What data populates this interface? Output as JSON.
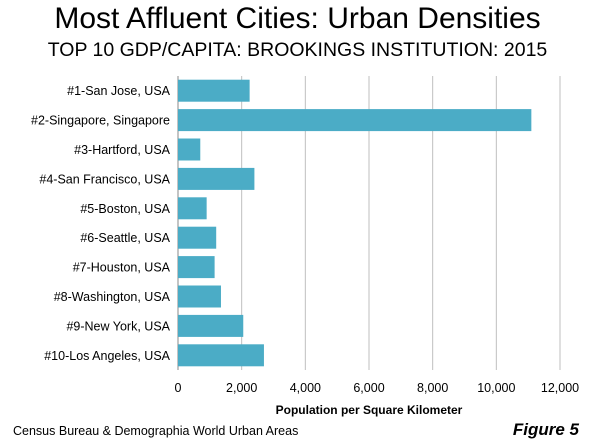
{
  "header": {
    "title": "Most Affluent Cities: Urban Densities",
    "subtitle": "TOP 10 GDP/CAPITA: BROOKINGS INSTITUTION: 2015"
  },
  "footer": {
    "source": "Census Bureau & Demographia World Urban Areas",
    "figure_label": "Figure 5"
  },
  "chart_data": {
    "type": "bar",
    "orientation": "horizontal",
    "categories": [
      "#1-San Jose, USA",
      "#2-Singapore, Singapore",
      "#3-Hartford, USA",
      "#4-San Francisco, USA",
      "#5-Boston, USA",
      "#6-Seattle, USA",
      "#7-Houston, USA",
      "#8-Washington, USA",
      "#9-New York, USA",
      "#10-Los Angeles, USA"
    ],
    "values": [
      2250,
      11100,
      700,
      2400,
      900,
      1200,
      1150,
      1350,
      2050,
      2700
    ],
    "xlabel": "Population per Square Kilometer",
    "ylabel": "",
    "xlim": [
      0,
      12000
    ],
    "xticks": [
      0,
      2000,
      4000,
      6000,
      8000,
      10000,
      12000
    ],
    "xtick_labels": [
      "0",
      "2,000",
      "4,000",
      "6,000",
      "8,000",
      "10,000",
      "12,000"
    ],
    "bar_color": "#4bacc6",
    "gridlines": "vertical",
    "legend": "none"
  }
}
